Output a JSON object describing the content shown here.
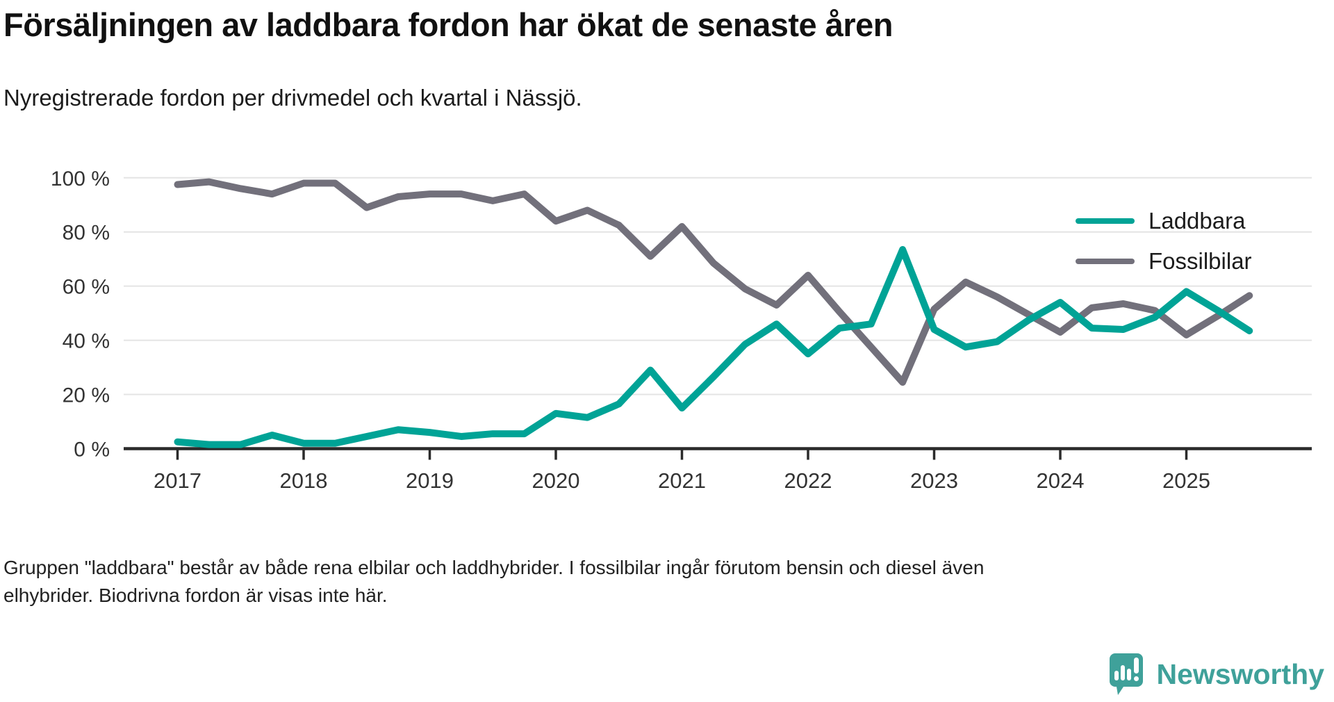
{
  "title": "Försäljningen av laddbara fordon har ökat de senaste åren",
  "subtitle": "Nyregistrerade fordon per drivmedel och kvartal i Nässjö.",
  "footer": {
    "line1": "Gruppen \"laddbara\" består av både rena elbilar och laddhybrider. I fossilbilar ingår förutom bensin och diesel även",
    "line2": "elhybrider. Biodrivna fordon är visas inte här."
  },
  "branding": {
    "name": "Newsworthy",
    "color": "#3fa19a"
  },
  "colors": {
    "laddbara": "#00a396",
    "fossilbilar": "#72707b",
    "grid": "#e4e4e4",
    "axis": "#2b2b2b",
    "tick_label": "#333333"
  },
  "legend": [
    {
      "label": "Laddbara"
    },
    {
      "label": "Fossilbilar"
    }
  ],
  "chart_data": {
    "type": "line",
    "title": "Försäljningen av laddbara fordon har ökat de senaste åren",
    "subtitle": "Nyregistrerade fordon per drivmedel och kvartal i Nässjö.",
    "x_unit": "quarter",
    "x_start": "2017-Q1",
    "x_end": "2025-Q3",
    "ylim": [
      0,
      100
    ],
    "grid": "horizontal",
    "legend_position": "top-right",
    "y_ticks": [
      {
        "value": 0,
        "label": "0 %"
      },
      {
        "value": 20,
        "label": "20 %"
      },
      {
        "value": 40,
        "label": "40 %"
      },
      {
        "value": 60,
        "label": "60 %"
      },
      {
        "value": 80,
        "label": "80 %"
      },
      {
        "value": 100,
        "label": "100 %"
      }
    ],
    "x_ticks": [
      {
        "label": "2017",
        "quarter_index": 0
      },
      {
        "label": "2018",
        "quarter_index": 4
      },
      {
        "label": "2019",
        "quarter_index": 8
      },
      {
        "label": "2020",
        "quarter_index": 12
      },
      {
        "label": "2021",
        "quarter_index": 16
      },
      {
        "label": "2022",
        "quarter_index": 20
      },
      {
        "label": "2023",
        "quarter_index": 24
      },
      {
        "label": "2024",
        "quarter_index": 28
      },
      {
        "label": "2025",
        "quarter_index": 32
      }
    ],
    "series": [
      {
        "name": "Laddbara",
        "color": "#00a396",
        "values": [
          2.5,
          1.5,
          1.5,
          5,
          2,
          2,
          4.5,
          7,
          6,
          4.5,
          5.5,
          5.5,
          13,
          11.5,
          16.5,
          29,
          15,
          26.5,
          38.5,
          46,
          35,
          44.5,
          46,
          73.5,
          44,
          37.5,
          39.5,
          47.5,
          54,
          44.5,
          44,
          48.5,
          58,
          51,
          43.5
        ]
      },
      {
        "name": "Fossilbilar",
        "color": "#72707b",
        "values": [
          97.5,
          98.5,
          96,
          94,
          98,
          98,
          89,
          93,
          94,
          94,
          91.5,
          94,
          84,
          88,
          82.5,
          71,
          82,
          68.5,
          59,
          53,
          64,
          50.5,
          37.5,
          24.5,
          51.5,
          61.5,
          56,
          49.5,
          43,
          52,
          53.5,
          51,
          42,
          49,
          56.5
        ]
      }
    ]
  }
}
